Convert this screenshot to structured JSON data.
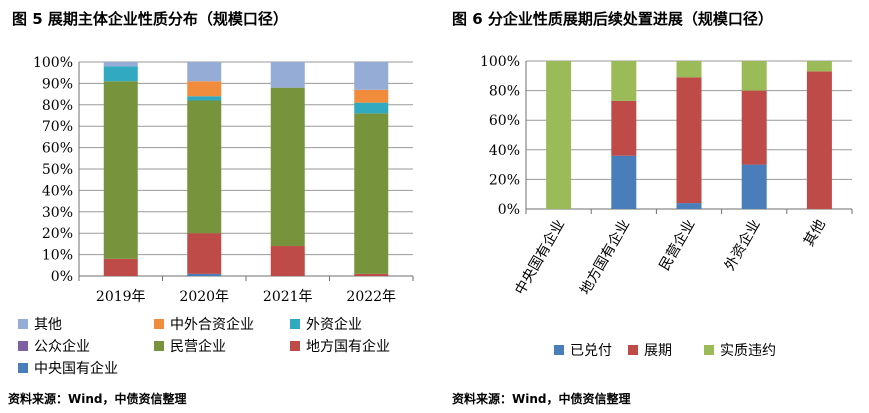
{
  "chart_data": [
    {
      "type": "bar",
      "stacked": true,
      "title": "图 5  展期主体企业性质分布（规模口径）",
      "source": "资料来源：Wind，中债资信整理",
      "categories": [
        "2019年",
        "2020年",
        "2021年",
        "2022年"
      ],
      "yticks": [
        "0%",
        "10%",
        "20%",
        "30%",
        "40%",
        "50%",
        "60%",
        "70%",
        "80%",
        "90%",
        "100%"
      ],
      "ylim": [
        0,
        100
      ],
      "series": [
        {
          "name": "中央国有企业",
          "color": "#4a7ebb",
          "values": [
            0,
            1,
            0,
            0
          ]
        },
        {
          "name": "地方国有企业",
          "color": "#be4b48",
          "values": [
            8,
            19,
            14,
            1
          ]
        },
        {
          "name": "民营企业",
          "color": "#77933c",
          "values": [
            83,
            62,
            74,
            75
          ]
        },
        {
          "name": "公众企业",
          "color": "#7d60a0",
          "values": [
            0,
            0,
            0,
            0
          ]
        },
        {
          "name": "外资企业",
          "color": "#31a9c0",
          "values": [
            7,
            2,
            0,
            5
          ]
        },
        {
          "name": "中外合资企业",
          "color": "#f08c3c",
          "values": [
            0,
            7,
            0,
            6
          ]
        },
        {
          "name": "其他",
          "color": "#94acd6",
          "values": [
            2,
            9,
            12,
            13
          ]
        }
      ],
      "legend_rows": [
        [
          "其他",
          "中外合资企业",
          "外资企业"
        ],
        [
          "公众企业",
          "民营企业",
          "地方国有企业"
        ],
        [
          "中央国有企业"
        ]
      ]
    },
    {
      "type": "bar",
      "stacked": true,
      "title": "图 6  分企业性质展期后续处置进展（规模口径）",
      "source": "资料来源：Wind，中债资信整理",
      "categories": [
        "中央国有企业",
        "地方国有企业",
        "民营企业",
        "外资企业",
        "其他"
      ],
      "yticks": [
        "0%",
        "20%",
        "40%",
        "60%",
        "80%",
        "100%"
      ],
      "ylim": [
        0,
        100
      ],
      "series": [
        {
          "name": "已兑付",
          "color": "#4a7ebb",
          "values": [
            0,
            36,
            4,
            30,
            0
          ]
        },
        {
          "name": "展期",
          "color": "#be4b48",
          "values": [
            0,
            37,
            85,
            50,
            93
          ]
        },
        {
          "name": "实质违约",
          "color": "#9bbb59",
          "values": [
            100,
            27,
            11,
            20,
            7
          ]
        }
      ]
    }
  ]
}
